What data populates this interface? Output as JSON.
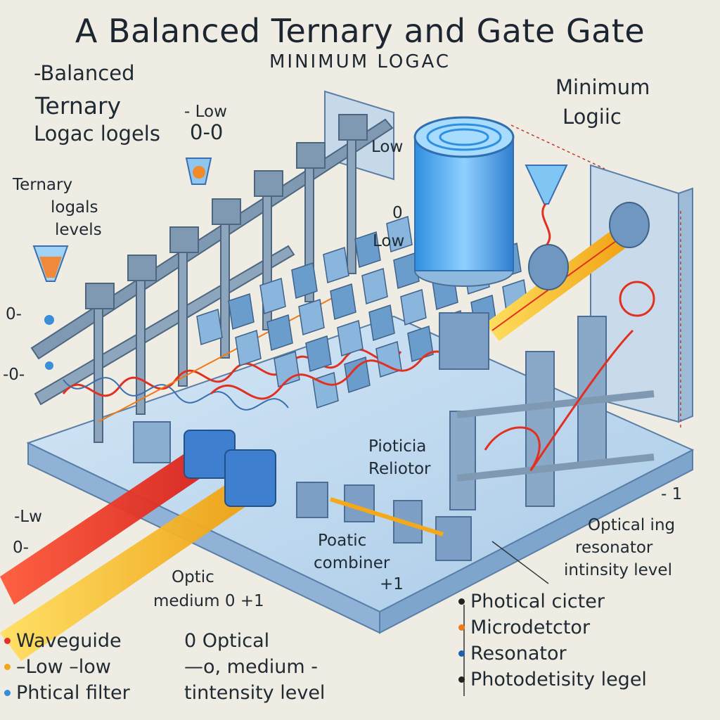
{
  "title": "A Balanced Ternary and Gate Gate",
  "subtitle": "MINIMUM LOGAC",
  "labels": {
    "top_left_1": "-Balanced",
    "top_left_2": "Ternary",
    "top_left_3": "Logac logels",
    "low_00": "- Low",
    "low_00_b": "0-0",
    "ternary_levels_1": "Ternary",
    "ternary_levels_2": "logals",
    "ternary_levels_3": "levels",
    "zero_a": "0-",
    "zero_b": "-0-",
    "low_top": "Low",
    "zero_mid": "0",
    "low_mid": "Low",
    "minimum_logic_1": "Minimum",
    "minimum_logic_2": "Logiic",
    "pioticia": "Pioticia",
    "reliotor": "Reliotor",
    "minus_one": "- 1",
    "optical_ing": "Optical ing",
    "resonator": "resonator",
    "intensity_level": "intinsity level",
    "left_lw": "-Lw",
    "left_zero": "0-",
    "poatic": "Poatic",
    "combiner": "combiner",
    "plus_one": "+1",
    "optic": "Optic",
    "medium_range": "medium 0 +1"
  },
  "legend_left": [
    {
      "text": "Waveguide",
      "color": "#e0302a"
    },
    {
      "text": "–Low –low",
      "color": "#f0a818"
    },
    {
      "text": "Phtical filter",
      "color": "#2f8fd8"
    }
  ],
  "legend_mid": [
    {
      "text": "0  Optical"
    },
    {
      "text": "—o, medium -"
    },
    {
      "text": "tintensity level"
    }
  ],
  "legend_right": [
    {
      "text": "Photical cicter",
      "color": "#222222"
    },
    {
      "text": "Microdetctor",
      "color": "#f07a18"
    },
    {
      "text": "Resonator",
      "color": "#1f5fb0"
    },
    {
      "text": "Photodetisity legel",
      "color": "#222222"
    }
  ],
  "colors": {
    "platform": "#b9d6ef",
    "component": "#6f9fca",
    "beam_red": "#e83020",
    "beam_yellow": "#f5c518",
    "beam_orange": "#f59a18",
    "cylinder": "#4aa8f0"
  }
}
